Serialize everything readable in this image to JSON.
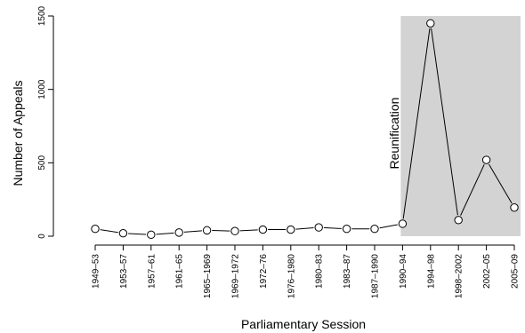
{
  "chart_data": {
    "type": "line",
    "xlabel": "Parliamentary Session",
    "ylabel": "Number of Appeals",
    "ylim": [
      0,
      1500
    ],
    "yticks": [
      0,
      500,
      1000,
      1500
    ],
    "grid": false,
    "categories": [
      "1949–53",
      "1953–57",
      "1957–61",
      "1961–65",
      "1965–1969",
      "1969–1972",
      "1972–76",
      "1976–1980",
      "1980–83",
      "1983–87",
      "1987–1990",
      "1990–94",
      "1994–98",
      "1998–2002",
      "2002–05",
      "2005–09"
    ],
    "values": [
      50,
      20,
      10,
      25,
      40,
      35,
      45,
      45,
      60,
      50,
      50,
      85,
      1450,
      110,
      520,
      195
    ],
    "marker": "open-circle",
    "line_color": "#000000",
    "annotation": {
      "label": "Reunification",
      "shade_from": "1990–94",
      "shade_color": "#d3d3d3"
    }
  }
}
